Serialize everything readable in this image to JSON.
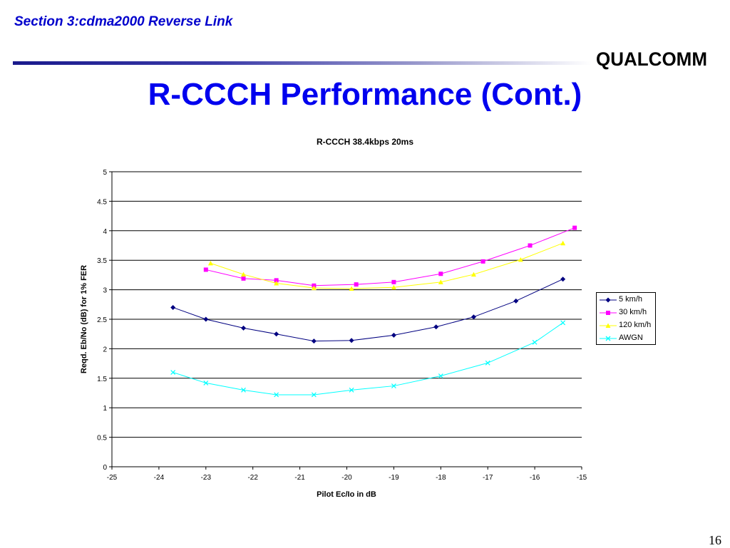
{
  "header": {
    "section_title": "Section 3:cdma2000 Reverse Link",
    "logo_text": "QUALCOMM"
  },
  "slide": {
    "title": "R-CCCH Performance (Cont.)",
    "page_number": "16"
  },
  "colors": {
    "title_blue": "#0000ee",
    "section_blue": "#0000cc"
  },
  "chart_data": {
    "type": "line",
    "title": "R-CCCH 38.4kbps 20ms",
    "xlabel": "Pilot Ec/Io in dB",
    "ylabel": "Reqd. Eb/No (dB) for 1% FER",
    "xlim": [
      -25,
      -15
    ],
    "ylim": [
      0,
      5
    ],
    "x_ticks": [
      "-25",
      "-24",
      "-23",
      "-22",
      "-21",
      "-20",
      "-19",
      "-18",
      "-17",
      "-16",
      "-15"
    ],
    "y_ticks": [
      "0",
      "0.5",
      "1",
      "1.5",
      "2",
      "2.5",
      "3",
      "3.5",
      "4",
      "4.5",
      "5"
    ],
    "grid": "horizontal major gridlines",
    "legend_position": "right",
    "series": [
      {
        "name": "5 km/h",
        "color": "#000080",
        "marker": "diamond",
        "x": [
          -23.7,
          -23.0,
          -22.2,
          -21.5,
          -20.7,
          -19.9,
          -19.0,
          -18.1,
          -17.3,
          -16.4,
          -15.4
        ],
        "y": [
          2.7,
          2.5,
          2.35,
          2.25,
          2.13,
          2.14,
          2.23,
          2.37,
          2.54,
          2.81,
          3.18
        ]
      },
      {
        "name": "30 km/h",
        "color": "#ff00ff",
        "marker": "square",
        "x": [
          -23.0,
          -22.2,
          -21.5,
          -20.7,
          -19.8,
          -19.0,
          -18.0,
          -17.1,
          -16.1,
          -15.15
        ],
        "y": [
          3.34,
          3.19,
          3.16,
          3.07,
          3.09,
          3.13,
          3.27,
          3.48,
          3.75,
          4.05
        ]
      },
      {
        "name": "120 km/h",
        "color": "#ffff00",
        "marker": "triangle",
        "x": [
          -22.9,
          -22.2,
          -21.5,
          -20.7,
          -19.9,
          -19.0,
          -18.0,
          -17.3,
          -16.3,
          -15.4
        ],
        "y": [
          3.45,
          3.26,
          3.11,
          3.03,
          3.02,
          3.04,
          3.13,
          3.26,
          3.51,
          3.79
        ]
      },
      {
        "name": "AWGN",
        "color": "#00ffff",
        "marker": "x",
        "x": [
          -23.7,
          -23.0,
          -22.2,
          -21.5,
          -20.7,
          -19.9,
          -19.0,
          -18.0,
          -17.0,
          -16.0,
          -15.4
        ],
        "y": [
          1.6,
          1.42,
          1.3,
          1.22,
          1.22,
          1.3,
          1.37,
          1.54,
          1.76,
          2.11,
          2.44
        ]
      }
    ]
  }
}
